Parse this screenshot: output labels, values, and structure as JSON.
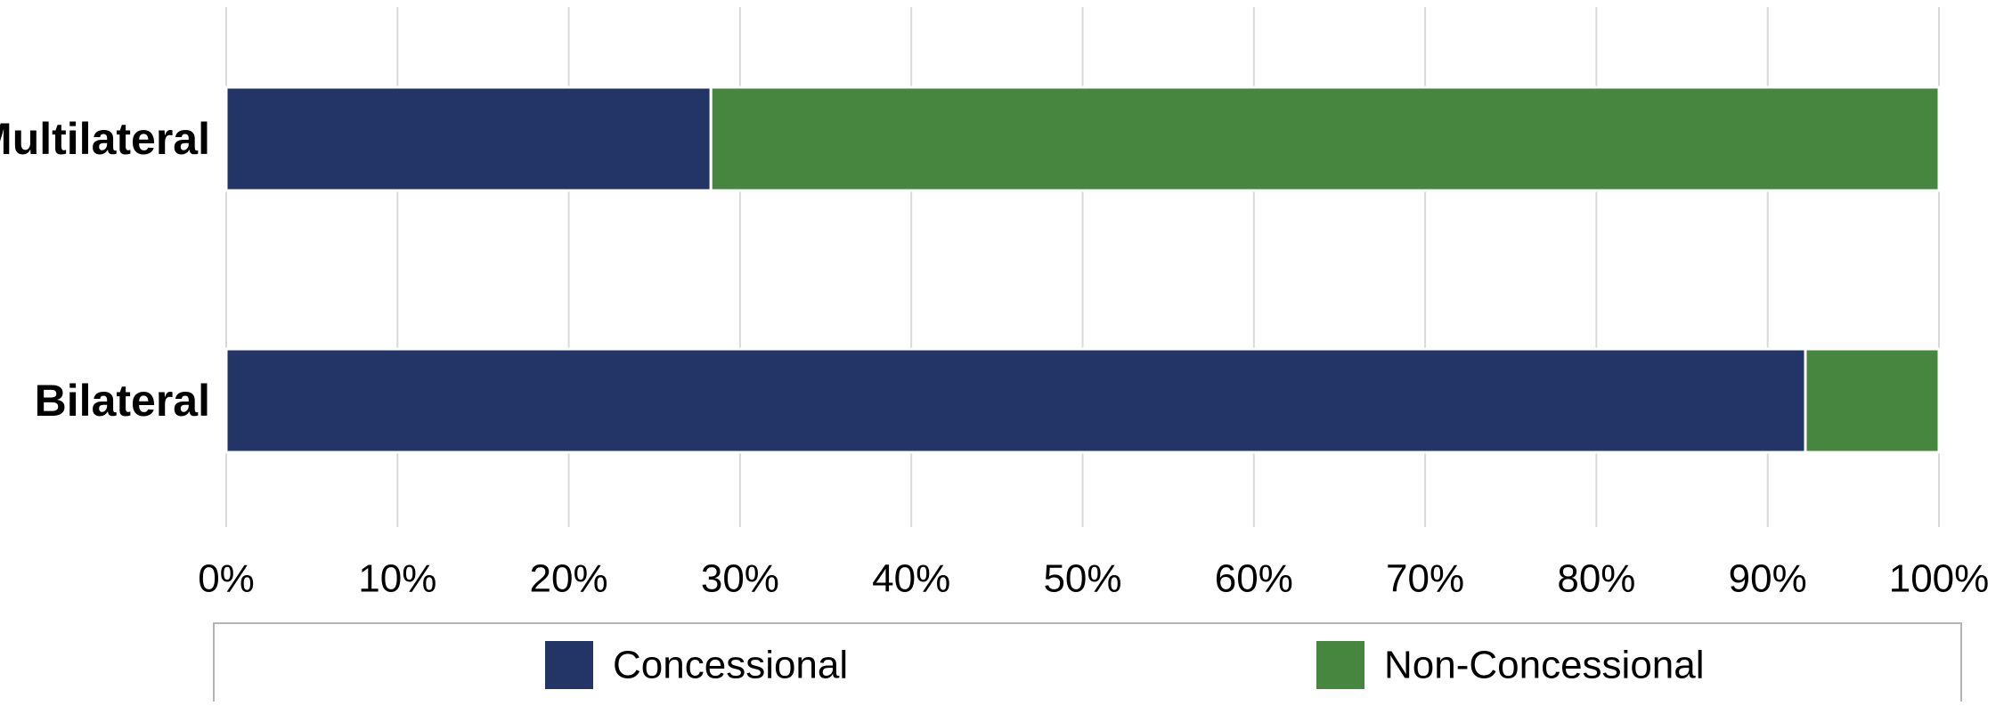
{
  "chart_data": {
    "type": "bar",
    "orientation": "horizontal",
    "stacked": true,
    "categories": [
      "Multilateral",
      "Bilateral"
    ],
    "series": [
      {
        "name": "Concessional",
        "color": "#233466",
        "values": [
          28.3,
          92.2
        ]
      },
      {
        "name": "Non-Concessional",
        "color": "#46863f",
        "values": [
          71.7,
          7.8
        ]
      }
    ],
    "x_ticks": [
      "0%",
      "10%",
      "20%",
      "30%",
      "40%",
      "50%",
      "60%",
      "70%",
      "80%",
      "90%",
      "100%"
    ],
    "xlim": [
      0,
      100
    ],
    "grid": true,
    "legend_position": "bottom",
    "title": "",
    "xlabel": "",
    "ylabel": ""
  }
}
